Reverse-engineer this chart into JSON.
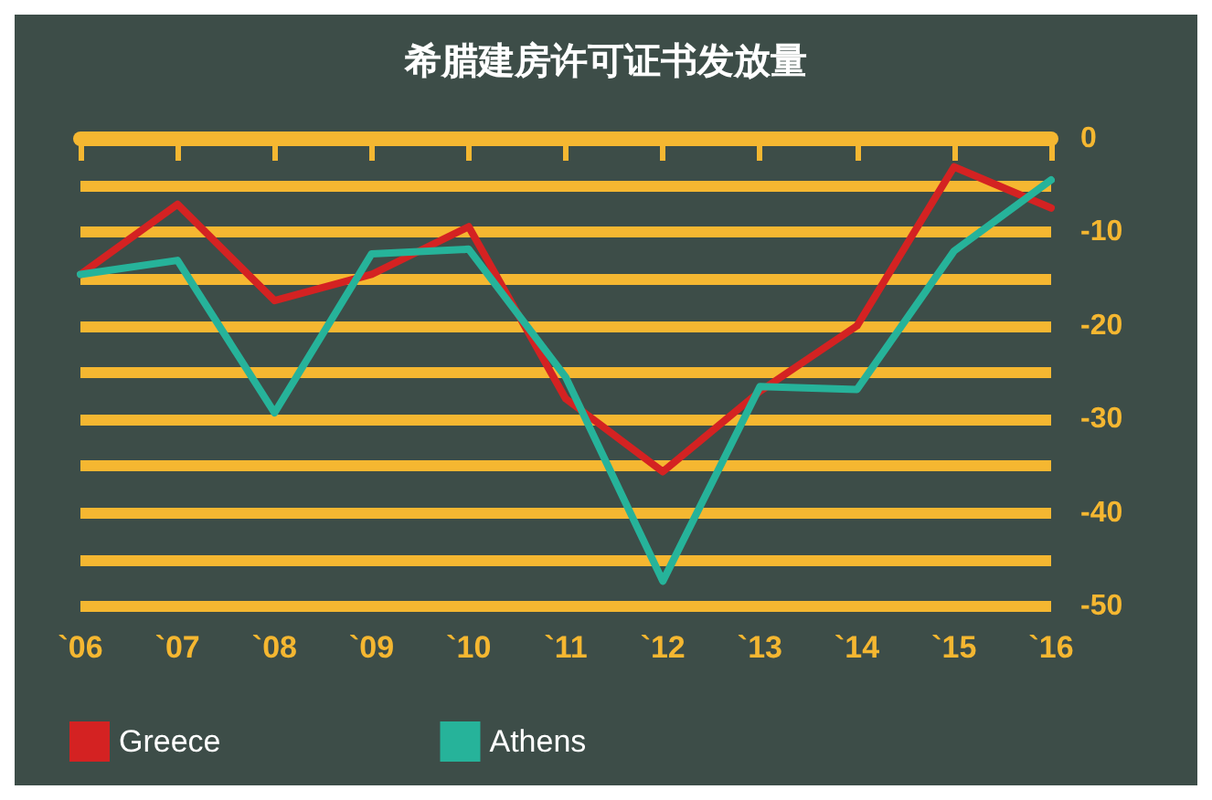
{
  "chart_data": {
    "type": "line",
    "title": "希腊建房许可证书发放量",
    "categories": [
      "`06",
      "`07",
      "`08",
      "`09",
      "`10",
      "`11",
      "`12",
      "`13",
      "`14",
      "`15",
      "`16"
    ],
    "series": [
      {
        "name": "Greece",
        "color": "#d42222",
        "values": [
          -14.5,
          -7,
          -17.3,
          -14.5,
          -9.4,
          -27.8,
          -35.6,
          -27,
          -20,
          -3,
          -7.4
        ]
      },
      {
        "name": "Athens",
        "color": "#26b39a",
        "values": [
          -14.5,
          -13,
          -29.3,
          -12.3,
          -11.8,
          -25.5,
          -47.3,
          -26.5,
          -26.8,
          -12,
          -4.4
        ]
      }
    ],
    "ylim": [
      -50,
      0
    ],
    "yticks": [
      0,
      {
        "value": -5,
        "label": null
      },
      -10,
      {
        "value": -15,
        "label": null
      },
      -20,
      {
        "value": -25,
        "label": null
      },
      -30,
      {
        "value": -35,
        "label": null
      },
      -40,
      {
        "value": -45,
        "label": null
      },
      -50
    ],
    "grid": "y",
    "legend": "bottom left",
    "marker": "none",
    "line_style": "solid"
  }
}
